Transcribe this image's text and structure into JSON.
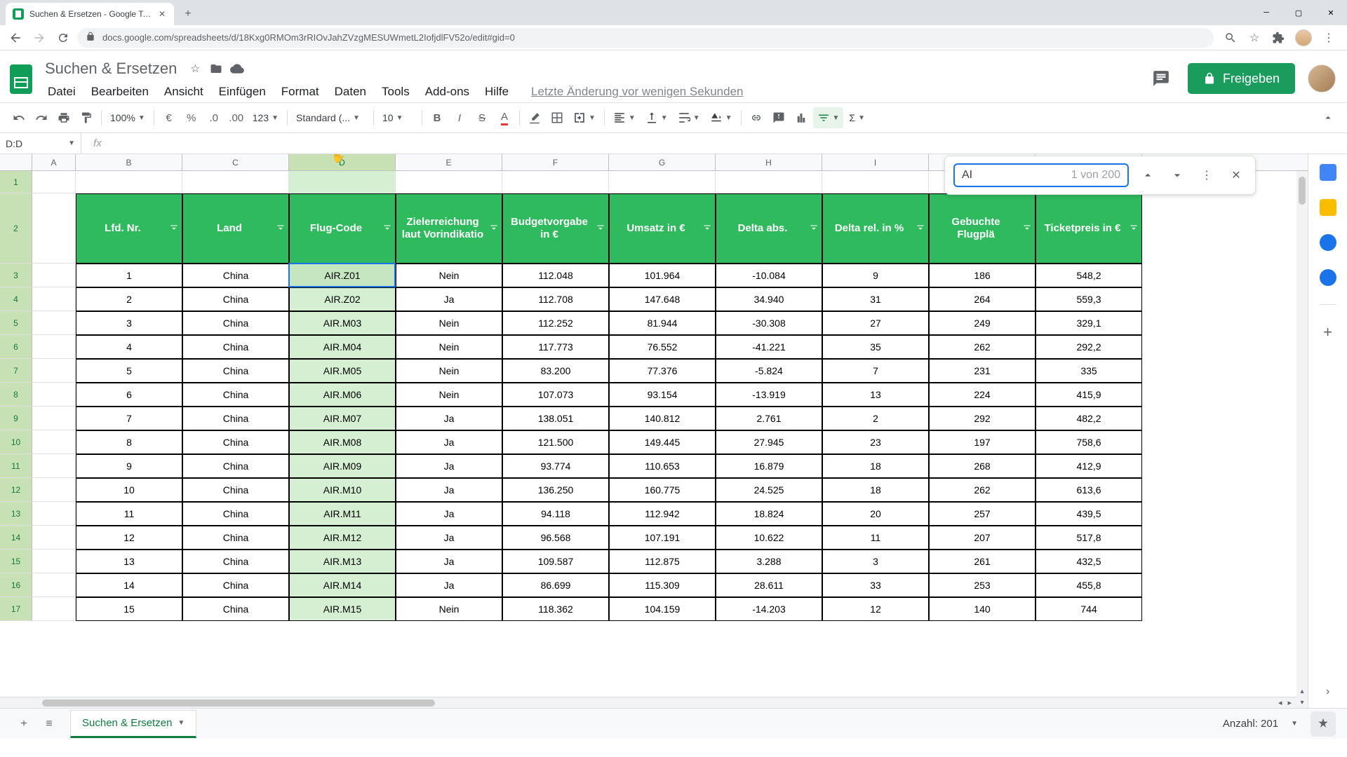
{
  "browser": {
    "tab_title": "Suchen & Ersetzen - Google Tab...",
    "url": "docs.google.com/spreadsheets/d/18Kxg0RMOm3rRIOvJahZVzgMESUWmetL2IofjdlFV52o/edit#gid=0"
  },
  "doc": {
    "title": "Suchen & Ersetzen",
    "last_edit": "Letzte Änderung vor wenigen Sekunden"
  },
  "menubar": [
    "Datei",
    "Bearbeiten",
    "Ansicht",
    "Einfügen",
    "Format",
    "Daten",
    "Tools",
    "Add-ons",
    "Hilfe"
  ],
  "share_label": "Freigeben",
  "toolbar": {
    "zoom": "100%",
    "format_name": "Standard (...",
    "font_size": "10"
  },
  "name_box": "D:D",
  "find": {
    "query": "AI",
    "count": "1 von 200"
  },
  "columns": [
    "A",
    "B",
    "C",
    "D",
    "E",
    "F",
    "G",
    "H",
    "I",
    "J",
    "K"
  ],
  "col_widths": {
    "A": 62,
    "B": 152,
    "C": 152,
    "D": 152,
    "E": 152,
    "F": 152,
    "G": 152,
    "H": 152,
    "I": 152,
    "J": 152,
    "K": 152
  },
  "headers": {
    "B": "Lfd. Nr.",
    "C": "Land",
    "D": "Flug-Code",
    "E": "Zielerreichung laut Vorindikatio",
    "F": "Budgetvorgabe in €",
    "G": "Umsatz in €",
    "H": "Delta abs.",
    "I": "Delta rel. in %",
    "J": "Gebuchte Flugplä",
    "K": "Ticketpreis in €"
  },
  "header_color": "#2fba5d",
  "highlight_color": "#d5efd3",
  "border_color": "#000000",
  "selected_col": "D",
  "rows": [
    {
      "n": 3,
      "B": "1",
      "C": "China",
      "D": "AIR.Z01",
      "E": "Nein",
      "F": "112.048",
      "G": "101.964",
      "H": "-10.084",
      "I": "9",
      "J": "186",
      "K": "548,2"
    },
    {
      "n": 4,
      "B": "2",
      "C": "China",
      "D": "AIR.Z02",
      "E": "Ja",
      "F": "112.708",
      "G": "147.648",
      "H": "34.940",
      "I": "31",
      "J": "264",
      "K": "559,3"
    },
    {
      "n": 5,
      "B": "3",
      "C": "China",
      "D": "AIR.M03",
      "E": "Nein",
      "F": "112.252",
      "G": "81.944",
      "H": "-30.308",
      "I": "27",
      "J": "249",
      "K": "329,1"
    },
    {
      "n": 6,
      "B": "4",
      "C": "China",
      "D": "AIR.M04",
      "E": "Nein",
      "F": "117.773",
      "G": "76.552",
      "H": "-41.221",
      "I": "35",
      "J": "262",
      "K": "292,2"
    },
    {
      "n": 7,
      "B": "5",
      "C": "China",
      "D": "AIR.M05",
      "E": "Nein",
      "F": "83.200",
      "G": "77.376",
      "H": "-5.824",
      "I": "7",
      "J": "231",
      "K": "335"
    },
    {
      "n": 8,
      "B": "6",
      "C": "China",
      "D": "AIR.M06",
      "E": "Nein",
      "F": "107.073",
      "G": "93.154",
      "H": "-13.919",
      "I": "13",
      "J": "224",
      "K": "415,9"
    },
    {
      "n": 9,
      "B": "7",
      "C": "China",
      "D": "AIR.M07",
      "E": "Ja",
      "F": "138.051",
      "G": "140.812",
      "H": "2.761",
      "I": "2",
      "J": "292",
      "K": "482,2"
    },
    {
      "n": 10,
      "B": "8",
      "C": "China",
      "D": "AIR.M08",
      "E": "Ja",
      "F": "121.500",
      "G": "149.445",
      "H": "27.945",
      "I": "23",
      "J": "197",
      "K": "758,6"
    },
    {
      "n": 11,
      "B": "9",
      "C": "China",
      "D": "AIR.M09",
      "E": "Ja",
      "F": "93.774",
      "G": "110.653",
      "H": "16.879",
      "I": "18",
      "J": "268",
      "K": "412,9"
    },
    {
      "n": 12,
      "B": "10",
      "C": "China",
      "D": "AIR.M10",
      "E": "Ja",
      "F": "136.250",
      "G": "160.775",
      "H": "24.525",
      "I": "18",
      "J": "262",
      "K": "613,6"
    },
    {
      "n": 13,
      "B": "11",
      "C": "China",
      "D": "AIR.M11",
      "E": "Ja",
      "F": "94.118",
      "G": "112.942",
      "H": "18.824",
      "I": "20",
      "J": "257",
      "K": "439,5"
    },
    {
      "n": 14,
      "B": "12",
      "C": "China",
      "D": "AIR.M12",
      "E": "Ja",
      "F": "96.568",
      "G": "107.191",
      "H": "10.622",
      "I": "11",
      "J": "207",
      "K": "517,8"
    },
    {
      "n": 15,
      "B": "13",
      "C": "China",
      "D": "AIR.M13",
      "E": "Ja",
      "F": "109.587",
      "G": "112.875",
      "H": "3.288",
      "I": "3",
      "J": "261",
      "K": "432,5"
    },
    {
      "n": 16,
      "B": "14",
      "C": "China",
      "D": "AIR.M14",
      "E": "Ja",
      "F": "86.699",
      "G": "115.309",
      "H": "28.611",
      "I": "33",
      "J": "253",
      "K": "455,8"
    },
    {
      "n": 17,
      "B": "15",
      "C": "China",
      "D": "AIR.M15",
      "E": "Nein",
      "F": "118.362",
      "G": "104.159",
      "H": "-14.203",
      "I": "12",
      "J": "140",
      "K": "744"
    }
  ],
  "sheet_tab": "Suchen & Ersetzen",
  "status": "Anzahl: 201"
}
